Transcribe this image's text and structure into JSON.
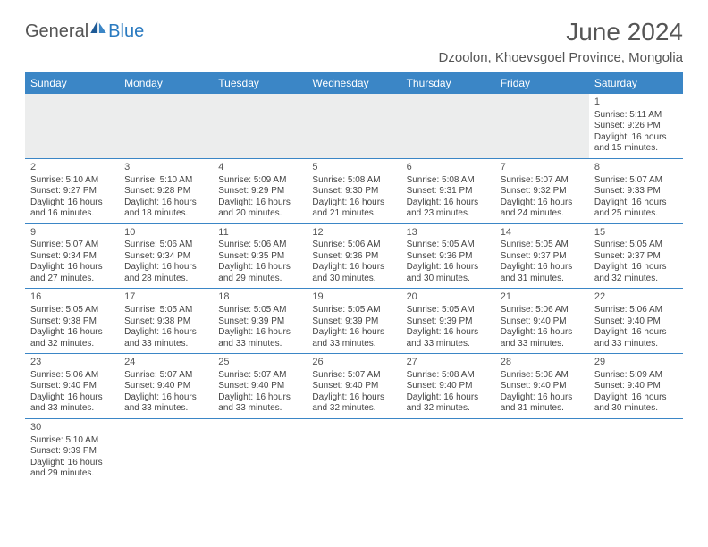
{
  "logo": {
    "part1": "General",
    "part2": "Blue"
  },
  "title": "June 2024",
  "location": "Dzoolon, Khoevsgoel Province, Mongolia",
  "colors": {
    "header_bg": "#3b86c6",
    "header_text": "#ffffff",
    "border": "#3b86c6",
    "empty_row_bg": "#eceded",
    "logo_blue": "#2a7ac0",
    "logo_gray": "#555555",
    "text": "#444444"
  },
  "weekdays": [
    "Sunday",
    "Monday",
    "Tuesday",
    "Wednesday",
    "Thursday",
    "Friday",
    "Saturday"
  ],
  "weeks": [
    [
      null,
      null,
      null,
      null,
      null,
      null,
      {
        "d": "1",
        "sr": "5:11 AM",
        "ss": "9:26 PM",
        "dl": "16 hours and 15 minutes."
      }
    ],
    [
      {
        "d": "2",
        "sr": "5:10 AM",
        "ss": "9:27 PM",
        "dl": "16 hours and 16 minutes."
      },
      {
        "d": "3",
        "sr": "5:10 AM",
        "ss": "9:28 PM",
        "dl": "16 hours and 18 minutes."
      },
      {
        "d": "4",
        "sr": "5:09 AM",
        "ss": "9:29 PM",
        "dl": "16 hours and 20 minutes."
      },
      {
        "d": "5",
        "sr": "5:08 AM",
        "ss": "9:30 PM",
        "dl": "16 hours and 21 minutes."
      },
      {
        "d": "6",
        "sr": "5:08 AM",
        "ss": "9:31 PM",
        "dl": "16 hours and 23 minutes."
      },
      {
        "d": "7",
        "sr": "5:07 AM",
        "ss": "9:32 PM",
        "dl": "16 hours and 24 minutes."
      },
      {
        "d": "8",
        "sr": "5:07 AM",
        "ss": "9:33 PM",
        "dl": "16 hours and 25 minutes."
      }
    ],
    [
      {
        "d": "9",
        "sr": "5:07 AM",
        "ss": "9:34 PM",
        "dl": "16 hours and 27 minutes."
      },
      {
        "d": "10",
        "sr": "5:06 AM",
        "ss": "9:34 PM",
        "dl": "16 hours and 28 minutes."
      },
      {
        "d": "11",
        "sr": "5:06 AM",
        "ss": "9:35 PM",
        "dl": "16 hours and 29 minutes."
      },
      {
        "d": "12",
        "sr": "5:06 AM",
        "ss": "9:36 PM",
        "dl": "16 hours and 30 minutes."
      },
      {
        "d": "13",
        "sr": "5:05 AM",
        "ss": "9:36 PM",
        "dl": "16 hours and 30 minutes."
      },
      {
        "d": "14",
        "sr": "5:05 AM",
        "ss": "9:37 PM",
        "dl": "16 hours and 31 minutes."
      },
      {
        "d": "15",
        "sr": "5:05 AM",
        "ss": "9:37 PM",
        "dl": "16 hours and 32 minutes."
      }
    ],
    [
      {
        "d": "16",
        "sr": "5:05 AM",
        "ss": "9:38 PM",
        "dl": "16 hours and 32 minutes."
      },
      {
        "d": "17",
        "sr": "5:05 AM",
        "ss": "9:38 PM",
        "dl": "16 hours and 33 minutes."
      },
      {
        "d": "18",
        "sr": "5:05 AM",
        "ss": "9:39 PM",
        "dl": "16 hours and 33 minutes."
      },
      {
        "d": "19",
        "sr": "5:05 AM",
        "ss": "9:39 PM",
        "dl": "16 hours and 33 minutes."
      },
      {
        "d": "20",
        "sr": "5:05 AM",
        "ss": "9:39 PM",
        "dl": "16 hours and 33 minutes."
      },
      {
        "d": "21",
        "sr": "5:06 AM",
        "ss": "9:40 PM",
        "dl": "16 hours and 33 minutes."
      },
      {
        "d": "22",
        "sr": "5:06 AM",
        "ss": "9:40 PM",
        "dl": "16 hours and 33 minutes."
      }
    ],
    [
      {
        "d": "23",
        "sr": "5:06 AM",
        "ss": "9:40 PM",
        "dl": "16 hours and 33 minutes."
      },
      {
        "d": "24",
        "sr": "5:07 AM",
        "ss": "9:40 PM",
        "dl": "16 hours and 33 minutes."
      },
      {
        "d": "25",
        "sr": "5:07 AM",
        "ss": "9:40 PM",
        "dl": "16 hours and 33 minutes."
      },
      {
        "d": "26",
        "sr": "5:07 AM",
        "ss": "9:40 PM",
        "dl": "16 hours and 32 minutes."
      },
      {
        "d": "27",
        "sr": "5:08 AM",
        "ss": "9:40 PM",
        "dl": "16 hours and 32 minutes."
      },
      {
        "d": "28",
        "sr": "5:08 AM",
        "ss": "9:40 PM",
        "dl": "16 hours and 31 minutes."
      },
      {
        "d": "29",
        "sr": "5:09 AM",
        "ss": "9:40 PM",
        "dl": "16 hours and 30 minutes."
      }
    ],
    [
      {
        "d": "30",
        "sr": "5:10 AM",
        "ss": "9:39 PM",
        "dl": "16 hours and 29 minutes."
      },
      null,
      null,
      null,
      null,
      null,
      null
    ]
  ],
  "labels": {
    "sunrise": "Sunrise:",
    "sunset": "Sunset:",
    "daylight": "Daylight:"
  }
}
